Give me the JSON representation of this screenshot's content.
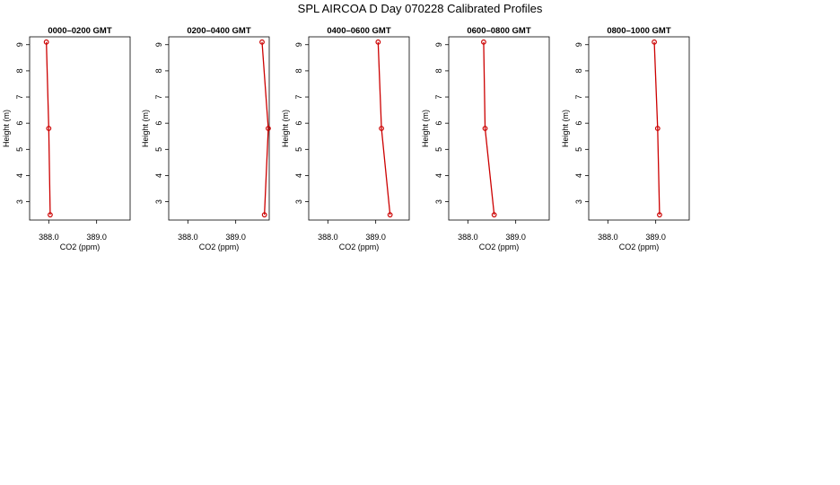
{
  "figure": {
    "title": "SPL AIRCOA D  Day 070228  Calibrated Profiles"
  },
  "chart_data": [
    {
      "type": "line",
      "title": "0000–0200 GMT",
      "xlabel": "CO2 (ppm)",
      "ylabel": "Height (m)",
      "xlim": [
        387.6,
        389.7
      ],
      "ylim": [
        2.3,
        9.3
      ],
      "xticks": [
        "388.0",
        "389.0"
      ],
      "xtick_values": [
        388.0,
        389.0
      ],
      "yticks": [
        "3",
        "4",
        "5",
        "6",
        "7",
        "8",
        "9"
      ],
      "ytick_values": [
        3,
        4,
        5,
        6,
        7,
        8,
        9
      ],
      "grid": false,
      "series": [
        {
          "x": [
            387.95,
            388.0,
            388.03
          ],
          "y": [
            9.1,
            5.8,
            2.5
          ]
        }
      ]
    },
    {
      "type": "line",
      "title": "0200–0400 GMT",
      "xlabel": "CO2 (ppm)",
      "ylabel": "Height (m)",
      "xlim": [
        387.6,
        389.7
      ],
      "ylim": [
        2.3,
        9.3
      ],
      "xticks": [
        "388.0",
        "389.0"
      ],
      "xtick_values": [
        388.0,
        389.0
      ],
      "yticks": [
        "3",
        "4",
        "5",
        "6",
        "7",
        "8",
        "9"
      ],
      "ytick_values": [
        3,
        4,
        5,
        6,
        7,
        8,
        9
      ],
      "grid": false,
      "series": [
        {
          "x": [
            389.55,
            389.68,
            389.6
          ],
          "y": [
            9.1,
            5.8,
            2.5
          ]
        }
      ]
    },
    {
      "type": "line",
      "title": "0400–0600 GMT",
      "xlabel": "CO2 (ppm)",
      "ylabel": "Height (m)",
      "xlim": [
        387.6,
        389.7
      ],
      "ylim": [
        2.3,
        9.3
      ],
      "xticks": [
        "388.0",
        "389.0"
      ],
      "xtick_values": [
        388.0,
        389.0
      ],
      "yticks": [
        "3",
        "4",
        "5",
        "6",
        "7",
        "8",
        "9"
      ],
      "ytick_values": [
        3,
        4,
        5,
        6,
        7,
        8,
        9
      ],
      "grid": false,
      "series": [
        {
          "x": [
            389.05,
            389.12,
            389.3
          ],
          "y": [
            9.1,
            5.8,
            2.5
          ]
        }
      ]
    },
    {
      "type": "line",
      "title": "0600–0800 GMT",
      "xlabel": "CO2 (ppm)",
      "ylabel": "Height (m)",
      "xlim": [
        387.6,
        389.7
      ],
      "ylim": [
        2.3,
        9.3
      ],
      "xticks": [
        "388.0",
        "389.0"
      ],
      "xtick_values": [
        388.0,
        389.0
      ],
      "yticks": [
        "3",
        "4",
        "5",
        "6",
        "7",
        "8",
        "9"
      ],
      "ytick_values": [
        3,
        4,
        5,
        6,
        7,
        8,
        9
      ],
      "grid": false,
      "series": [
        {
          "x": [
            388.33,
            388.36,
            388.55
          ],
          "y": [
            9.1,
            5.8,
            2.5
          ]
        }
      ]
    },
    {
      "type": "line",
      "title": "0800–1000 GMT",
      "xlabel": "CO2 (ppm)",
      "ylabel": "Height (m)",
      "xlim": [
        387.6,
        389.7
      ],
      "ylim": [
        2.3,
        9.3
      ],
      "xticks": [
        "388.0",
        "389.0"
      ],
      "xtick_values": [
        388.0,
        389.0
      ],
      "yticks": [
        "3",
        "4",
        "5",
        "6",
        "7",
        "8",
        "9"
      ],
      "ytick_values": [
        3,
        4,
        5,
        6,
        7,
        8,
        9
      ],
      "grid": false,
      "series": [
        {
          "x": [
            388.97,
            389.04,
            389.08
          ],
          "y": [
            9.1,
            5.8,
            2.5
          ]
        }
      ]
    }
  ],
  "colors": {
    "series": "#cc0000",
    "axis": "#000000"
  }
}
